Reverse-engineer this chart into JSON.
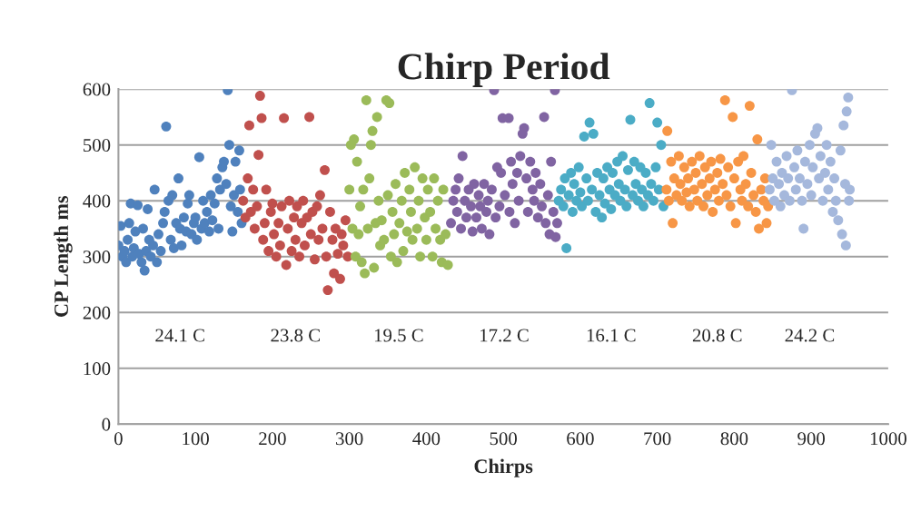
{
  "chart_data": {
    "type": "scatter",
    "title": "Chirp Period",
    "xlabel": "Chirps",
    "ylabel": "CP Length ms",
    "xlim": [
      0,
      1000
    ],
    "xticks": [
      0,
      100,
      200,
      300,
      400,
      500,
      600,
      700,
      800,
      900,
      1000
    ],
    "ylim": [
      0,
      600
    ],
    "yticks": [
      0,
      100,
      200,
      300,
      400,
      500,
      600
    ],
    "grid": "y",
    "legend": false,
    "marker": "circle",
    "annotations": [
      "24.1 C",
      "23.8 C",
      "19.5 C",
      "17.2 C",
      "16.1 C",
      "20.8 C",
      "24.2 C"
    ],
    "series": [
      {
        "color": "#4f81bd",
        "x": [
          0,
          3,
          5,
          8,
          10,
          12,
          14,
          16,
          18,
          20,
          22,
          25,
          27,
          30,
          32,
          34,
          36,
          38,
          40,
          42,
          45,
          47,
          50,
          52,
          55,
          58,
          60,
          62,
          65,
          68,
          70,
          72,
          75,
          78,
          80,
          82,
          85,
          88,
          90,
          92,
          95,
          98,
          100,
          102,
          105,
          108,
          110,
          112,
          115,
          118,
          120,
          122,
          125,
          128,
          130,
          132,
          135,
          137,
          140,
          142,
          144,
          146,
          148,
          150,
          152,
          155,
          157,
          158,
          160
        ],
        "values": [
          320,
          355,
          300,
          310,
          290,
          330,
          360,
          395,
          300,
          315,
          345,
          392,
          305,
          290,
          350,
          275,
          310,
          385,
          330,
          300,
          320,
          420,
          290,
          340,
          310,
          360,
          380,
          533,
          400,
          330,
          410,
          315,
          360,
          440,
          350,
          320,
          370,
          345,
          395,
          410,
          340,
          360,
          370,
          330,
          478,
          350,
          400,
          360,
          380,
          345,
          410,
          365,
          395,
          440,
          350,
          420,
          460,
          470,
          430,
          598,
          500,
          390,
          345,
          410,
          470,
          380,
          490,
          420,
          360
        ]
      },
      {
        "color": "#c0504d",
        "x": [
          162,
          165,
          168,
          170,
          172,
          175,
          177,
          180,
          182,
          184,
          186,
          188,
          190,
          192,
          195,
          198,
          200,
          202,
          205,
          208,
          210,
          212,
          215,
          218,
          220,
          222,
          225,
          228,
          230,
          232,
          235,
          238,
          240,
          242,
          245,
          248,
          250,
          252,
          255,
          258,
          260,
          262,
          265,
          268,
          270,
          272,
          275,
          278,
          280,
          282,
          285,
          288,
          290,
          292,
          295,
          298
        ],
        "values": [
          400,
          370,
          440,
          535,
          380,
          420,
          350,
          390,
          482,
          588,
          548,
          330,
          360,
          420,
          310,
          380,
          395,
          340,
          300,
          360,
          320,
          390,
          548,
          285,
          350,
          400,
          310,
          370,
          330,
          390,
          300,
          360,
          400,
          320,
          370,
          550,
          340,
          380,
          295,
          390,
          330,
          410,
          350,
          455,
          300,
          240,
          380,
          330,
          270,
          350,
          305,
          260,
          340,
          320,
          365,
          300
        ]
      },
      {
        "color": "#9bbb59",
        "x": [
          300,
          302,
          304,
          306,
          308,
          310,
          312,
          314,
          316,
          318,
          320,
          322,
          324,
          326,
          328,
          330,
          332,
          334,
          336,
          338,
          340,
          342,
          345,
          348,
          350,
          352,
          354,
          356,
          358,
          360,
          362,
          365,
          368,
          370,
          372,
          375,
          378,
          380,
          382,
          385,
          388,
          390,
          392,
          395,
          398,
          400,
          402,
          405,
          408,
          410,
          412,
          415,
          418,
          420,
          422,
          425,
          428
        ],
        "values": [
          420,
          500,
          350,
          510,
          300,
          470,
          340,
          390,
          290,
          420,
          270,
          580,
          350,
          440,
          500,
          525,
          280,
          360,
          550,
          400,
          320,
          365,
          330,
          580,
          410,
          575,
          300,
          380,
          340,
          430,
          290,
          360,
          400,
          310,
          450,
          345,
          420,
          380,
          330,
          460,
          350,
          400,
          300,
          440,
          370,
          330,
          420,
          380,
          300,
          440,
          350,
          400,
          330,
          290,
          420,
          340,
          285
        ]
      },
      {
        "color": "#8064a2",
        "x": [
          432,
          435,
          438,
          440,
          442,
          445,
          447,
          450,
          452,
          455,
          458,
          460,
          462,
          465,
          468,
          470,
          472,
          475,
          478,
          480,
          482,
          485,
          488,
          490,
          492,
          495,
          497,
          499,
          502,
          507,
          508,
          510,
          512,
          515,
          518,
          520,
          522,
          525,
          527,
          530,
          532,
          535,
          538,
          540,
          542,
          545,
          548,
          550,
          553,
          555,
          558,
          560,
          562,
          565,
          567,
          568,
          570
        ],
        "values": [
          360,
          400,
          420,
          380,
          440,
          350,
          480,
          400,
          370,
          420,
          390,
          345,
          430,
          370,
          410,
          390,
          350,
          430,
          380,
          400,
          340,
          420,
          598,
          370,
          460,
          390,
          450,
          548,
          410,
          548,
          380,
          470,
          430,
          360,
          450,
          400,
          480,
          520,
          530,
          440,
          380,
          470,
          420,
          400,
          450,
          370,
          430,
          390,
          550,
          360,
          410,
          340,
          470,
          380,
          598,
          335,
          360
        ]
      },
      {
        "color": "#4bacc6",
        "x": [
          572,
          575,
          578,
          580,
          582,
          585,
          588,
          590,
          592,
          595,
          598,
          600,
          602,
          605,
          608,
          610,
          612,
          615,
          617,
          620,
          622,
          625,
          628,
          630,
          632,
          635,
          638,
          640,
          642,
          645,
          648,
          650,
          652,
          655,
          658,
          660,
          662,
          665,
          668,
          670,
          672,
          675,
          678,
          680,
          682,
          685,
          688,
          690,
          692,
          695,
          698,
          700,
          702,
          705,
          708
        ],
        "values": [
          400,
          420,
          390,
          440,
          315,
          410,
          450,
          380,
          430,
          400,
          460,
          415,
          390,
          515,
          440,
          400,
          540,
          420,
          520,
          380,
          450,
          410,
          370,
          440,
          395,
          460,
          420,
          385,
          450,
          410,
          470,
          430,
          400,
          480,
          420,
          390,
          455,
          545,
          410,
          470,
          430,
          400,
          460,
          420,
          390,
          450,
          410,
          575,
          430,
          400,
          460,
          540,
          420,
          500,
          390
        ]
      },
      {
        "color": "#f79646",
        "x": [
          712,
          713,
          715,
          718,
          720,
          722,
          725,
          728,
          730,
          732,
          735,
          738,
          740,
          742,
          745,
          748,
          750,
          752,
          755,
          758,
          760,
          762,
          765,
          768,
          770,
          772,
          775,
          778,
          780,
          782,
          785,
          788,
          790,
          792,
          795,
          798,
          800,
          802,
          805,
          808,
          810,
          812,
          815,
          818,
          820,
          822,
          825,
          828,
          830,
          832,
          835,
          838,
          840,
          842,
          844
        ],
        "values": [
          420,
          525,
          400,
          470,
          360,
          440,
          410,
          480,
          430,
          400,
          460,
          415,
          440,
          390,
          470,
          420,
          450,
          400,
          480,
          430,
          390,
          460,
          410,
          440,
          470,
          380,
          420,
          450,
          400,
          475,
          430,
          580,
          410,
          460,
          390,
          550,
          440,
          360,
          470,
          420,
          400,
          480,
          430,
          390,
          570,
          450,
          410,
          380,
          510,
          350,
          420,
          400,
          440,
          360,
          390
        ]
      },
      {
        "color": "#a5b8dc",
        "x": [
          846,
          848,
          850,
          852,
          855,
          858,
          860,
          862,
          865,
          868,
          870,
          872,
          875,
          878,
          880,
          882,
          885,
          888,
          890,
          892,
          895,
          898,
          900,
          902,
          905,
          908,
          910,
          912,
          915,
          918,
          920,
          922,
          925,
          928,
          930,
          932,
          935,
          938,
          940,
          942,
          944,
          945,
          946,
          948,
          949,
          950
        ],
        "values": [
          420,
          500,
          440,
          400,
          470,
          430,
          390,
          450,
          410,
          480,
          440,
          400,
          598,
          460,
          420,
          490,
          440,
          400,
          350,
          470,
          430,
          500,
          410,
          460,
          520,
          530,
          440,
          480,
          400,
          450,
          500,
          420,
          470,
          380,
          440,
          400,
          365,
          490,
          340,
          535,
          430,
          320,
          560,
          585,
          400,
          420
        ]
      }
    ]
  }
}
